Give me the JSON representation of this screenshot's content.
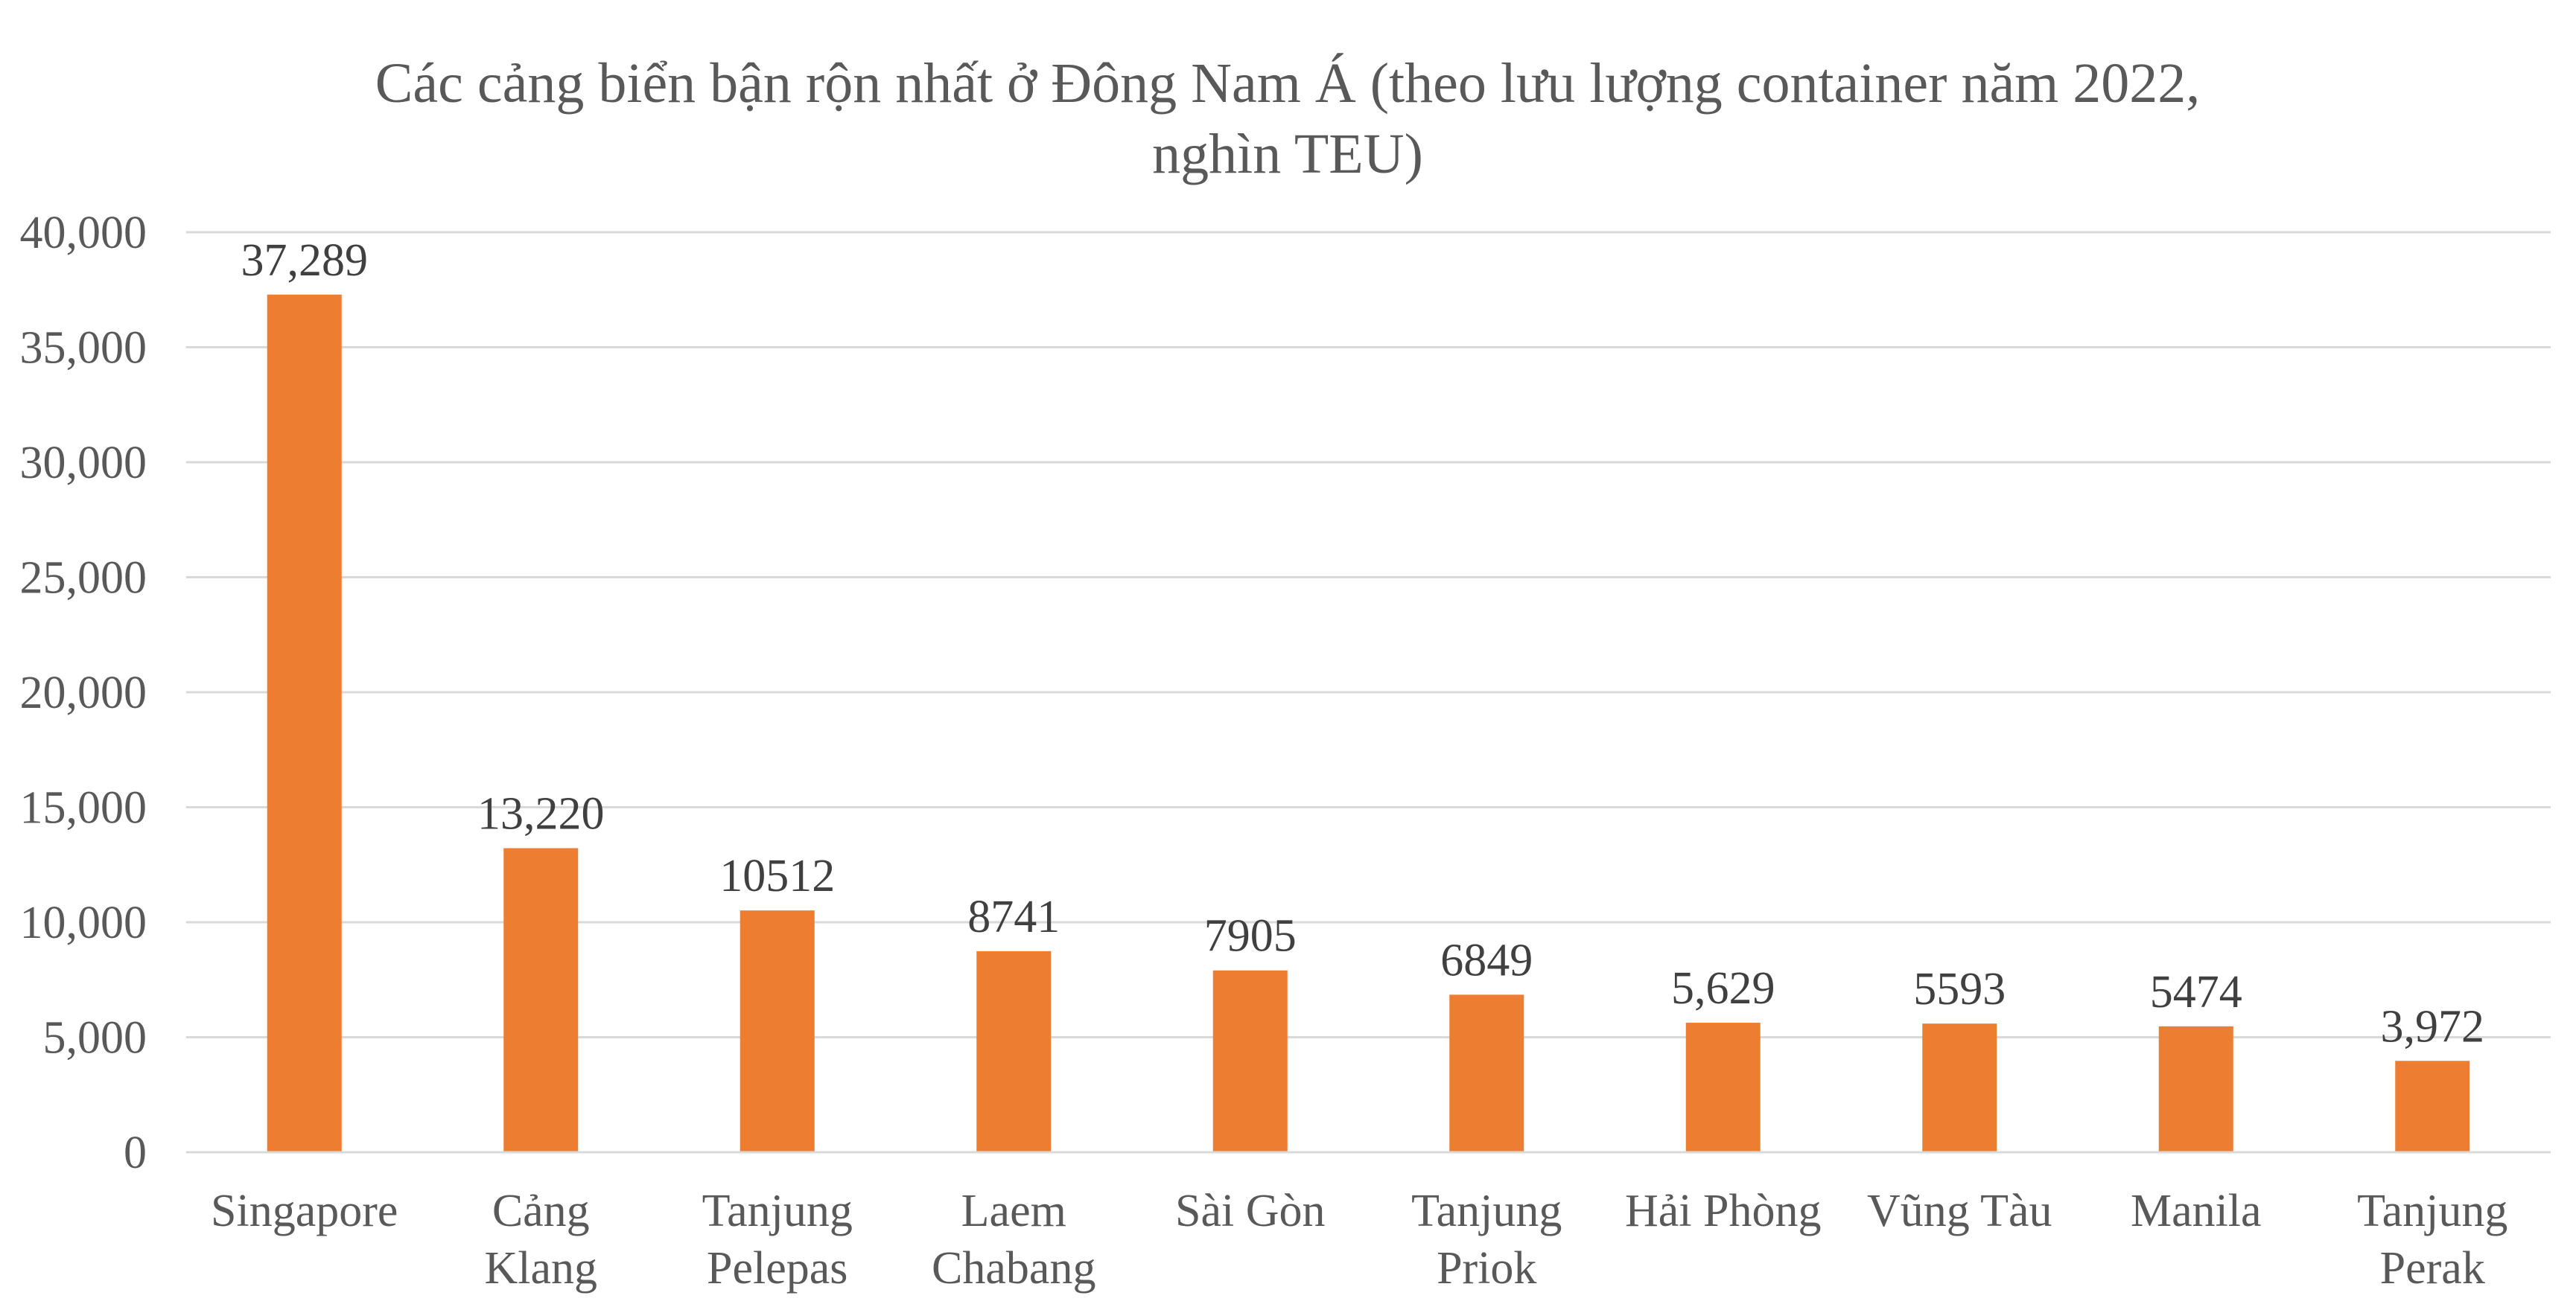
{
  "chart_data": {
    "type": "bar",
    "title": "Các cảng biển bận rộn nhất ở Đông Nam Á (theo lưu lượng container năm 2022, nghìn TEU)",
    "title_lines": [
      "Các cảng biển bận rộn nhất ở Đông Nam Á (theo lưu lượng container năm 2022,",
      "nghìn TEU)"
    ],
    "xlabel": "",
    "ylabel": "",
    "ylim": [
      0,
      40000
    ],
    "yticks": [
      0,
      5000,
      10000,
      15000,
      20000,
      25000,
      30000,
      35000,
      40000
    ],
    "ytick_labels": [
      "0",
      "5,000",
      "10,000",
      "15,000",
      "20,000",
      "25,000",
      "30,000",
      "35,000",
      "40,000"
    ],
    "grid": true,
    "legend": "none",
    "bar_color": "#ED7D31",
    "categories": [
      [
        "Singapore"
      ],
      [
        "Cảng",
        "Klang"
      ],
      [
        "Tanjung",
        "Pelepas"
      ],
      [
        "Laem",
        "Chabang"
      ],
      [
        "Sài Gòn"
      ],
      [
        "Tanjung",
        "Priok"
      ],
      [
        "Hải Phòng"
      ],
      [
        "Vũng Tàu"
      ],
      [
        "Manila"
      ],
      [
        "Tanjung",
        "Perak"
      ]
    ],
    "values": [
      37289,
      13220,
      10512,
      8741,
      7905,
      6849,
      5629,
      5593,
      5474,
      3972
    ],
    "data_labels": [
      "37,289",
      "13,220",
      "10512",
      "8741",
      "7905",
      "6849",
      "5,629",
      "5593",
      "5474",
      "3,972"
    ]
  }
}
